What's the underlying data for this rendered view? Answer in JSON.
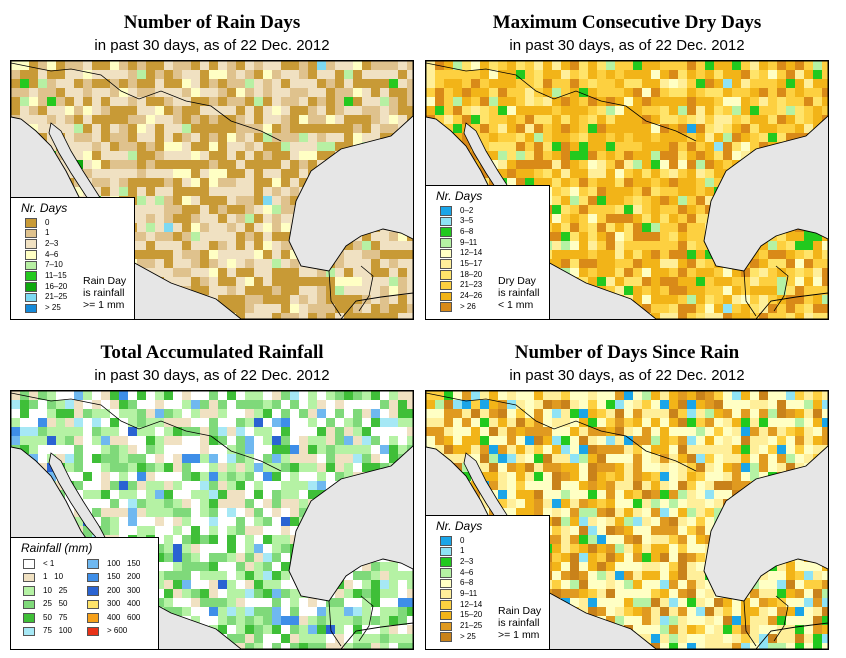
{
  "panels": {
    "rain_days": {
      "title": "Number of Rain Days",
      "subtitle": "in past 30 days, as of  22 Dec. 2012",
      "legend_title": "Nr. Days",
      "classes": [
        {
          "label": "0",
          "color": "#c89a36"
        },
        {
          "label": "1",
          "color": "#dfc28d"
        },
        {
          "label": "2–3",
          "color": "#f0e1c2"
        },
        {
          "label": "4–6",
          "color": "#ffffc4"
        },
        {
          "label": "7–10",
          "color": "#b7f0a3"
        },
        {
          "label": "11–15",
          "color": "#25c91f"
        },
        {
          "label": "16–20",
          "color": "#0fa80f"
        },
        {
          "label": "21–25",
          "color": "#7dd9f2"
        },
        {
          "label": "> 25",
          "color": "#1589d8"
        }
      ],
      "note": [
        "Rain Day",
        "is rainfall",
        ">= 1 mm"
      ]
    },
    "dry_days": {
      "title": "Maximum Consecutive Dry Days",
      "subtitle": "in past 30 days, as of  22 Dec. 2012",
      "legend_title": "Nr. Days",
      "classes": [
        {
          "label": "0–2",
          "color": "#1aa5e8"
        },
        {
          "label": "3–5",
          "color": "#8fe3f5"
        },
        {
          "label": "6–8",
          "color": "#22c91e"
        },
        {
          "label": "9–11",
          "color": "#b5f2a4"
        },
        {
          "label": "12–14",
          "color": "#ffffc4"
        },
        {
          "label": "15–17",
          "color": "#ffef9a"
        },
        {
          "label": "18–20",
          "color": "#ffe46a"
        },
        {
          "label": "21–23",
          "color": "#fdd040"
        },
        {
          "label": "24–26",
          "color": "#f2b418"
        },
        {
          "label": "> 26",
          "color": "#d98a18"
        }
      ],
      "note": [
        "Dry Day",
        "is rainfall",
        "< 1 mm"
      ]
    },
    "total_rain": {
      "title": "Total Accumulated Rainfall",
      "subtitle": "in past 30 days, as of  22 Dec. 2012",
      "legend_title": "Rainfall (mm)",
      "classes": [
        {
          "label": "< 1",
          "color": "#ffffff"
        },
        {
          "label": "1   10",
          "color": "#f0e1c2"
        },
        {
          "label": "10   25",
          "color": "#b5f2a4"
        },
        {
          "label": "25   50",
          "color": "#7fd97a"
        },
        {
          "label": "50   75",
          "color": "#3fbf38"
        },
        {
          "label": "75   100",
          "color": "#a6e8f5"
        },
        {
          "label": "100   150",
          "color": "#6fb8f0"
        },
        {
          "label": "150   200",
          "color": "#3e8ee8"
        },
        {
          "label": "200   300",
          "color": "#2a63d2"
        },
        {
          "label": "300   400",
          "color": "#ffe46a"
        },
        {
          "label": "400   600",
          "color": "#f5a01a"
        },
        {
          "label": "> 600",
          "color": "#e83218"
        }
      ]
    },
    "since_rain": {
      "title": "Number of Days Since Rain",
      "subtitle": "in past 30 days, as of  22 Dec. 2012",
      "legend_title": "Nr. Days",
      "classes": [
        {
          "label": "0",
          "color": "#1aa5e8"
        },
        {
          "label": "1",
          "color": "#8fe3f5"
        },
        {
          "label": "2–3",
          "color": "#22c91e"
        },
        {
          "label": "4–6",
          "color": "#b5f2a4"
        },
        {
          "label": "6–8",
          "color": "#ffffc4"
        },
        {
          "label": "9–11",
          "color": "#ffef9a"
        },
        {
          "label": "12–14",
          "color": "#fdd040"
        },
        {
          "label": "15–20",
          "color": "#f2b418"
        },
        {
          "label": "21–25",
          "color": "#e09a20"
        },
        {
          "label": "> 25",
          "color": "#c9821a"
        }
      ],
      "note": [
        "Rain Day",
        "is rainfall",
        ">= 1 mm"
      ]
    }
  },
  "colors": {
    "water": "#e6e6e6",
    "border": "#000000"
  }
}
